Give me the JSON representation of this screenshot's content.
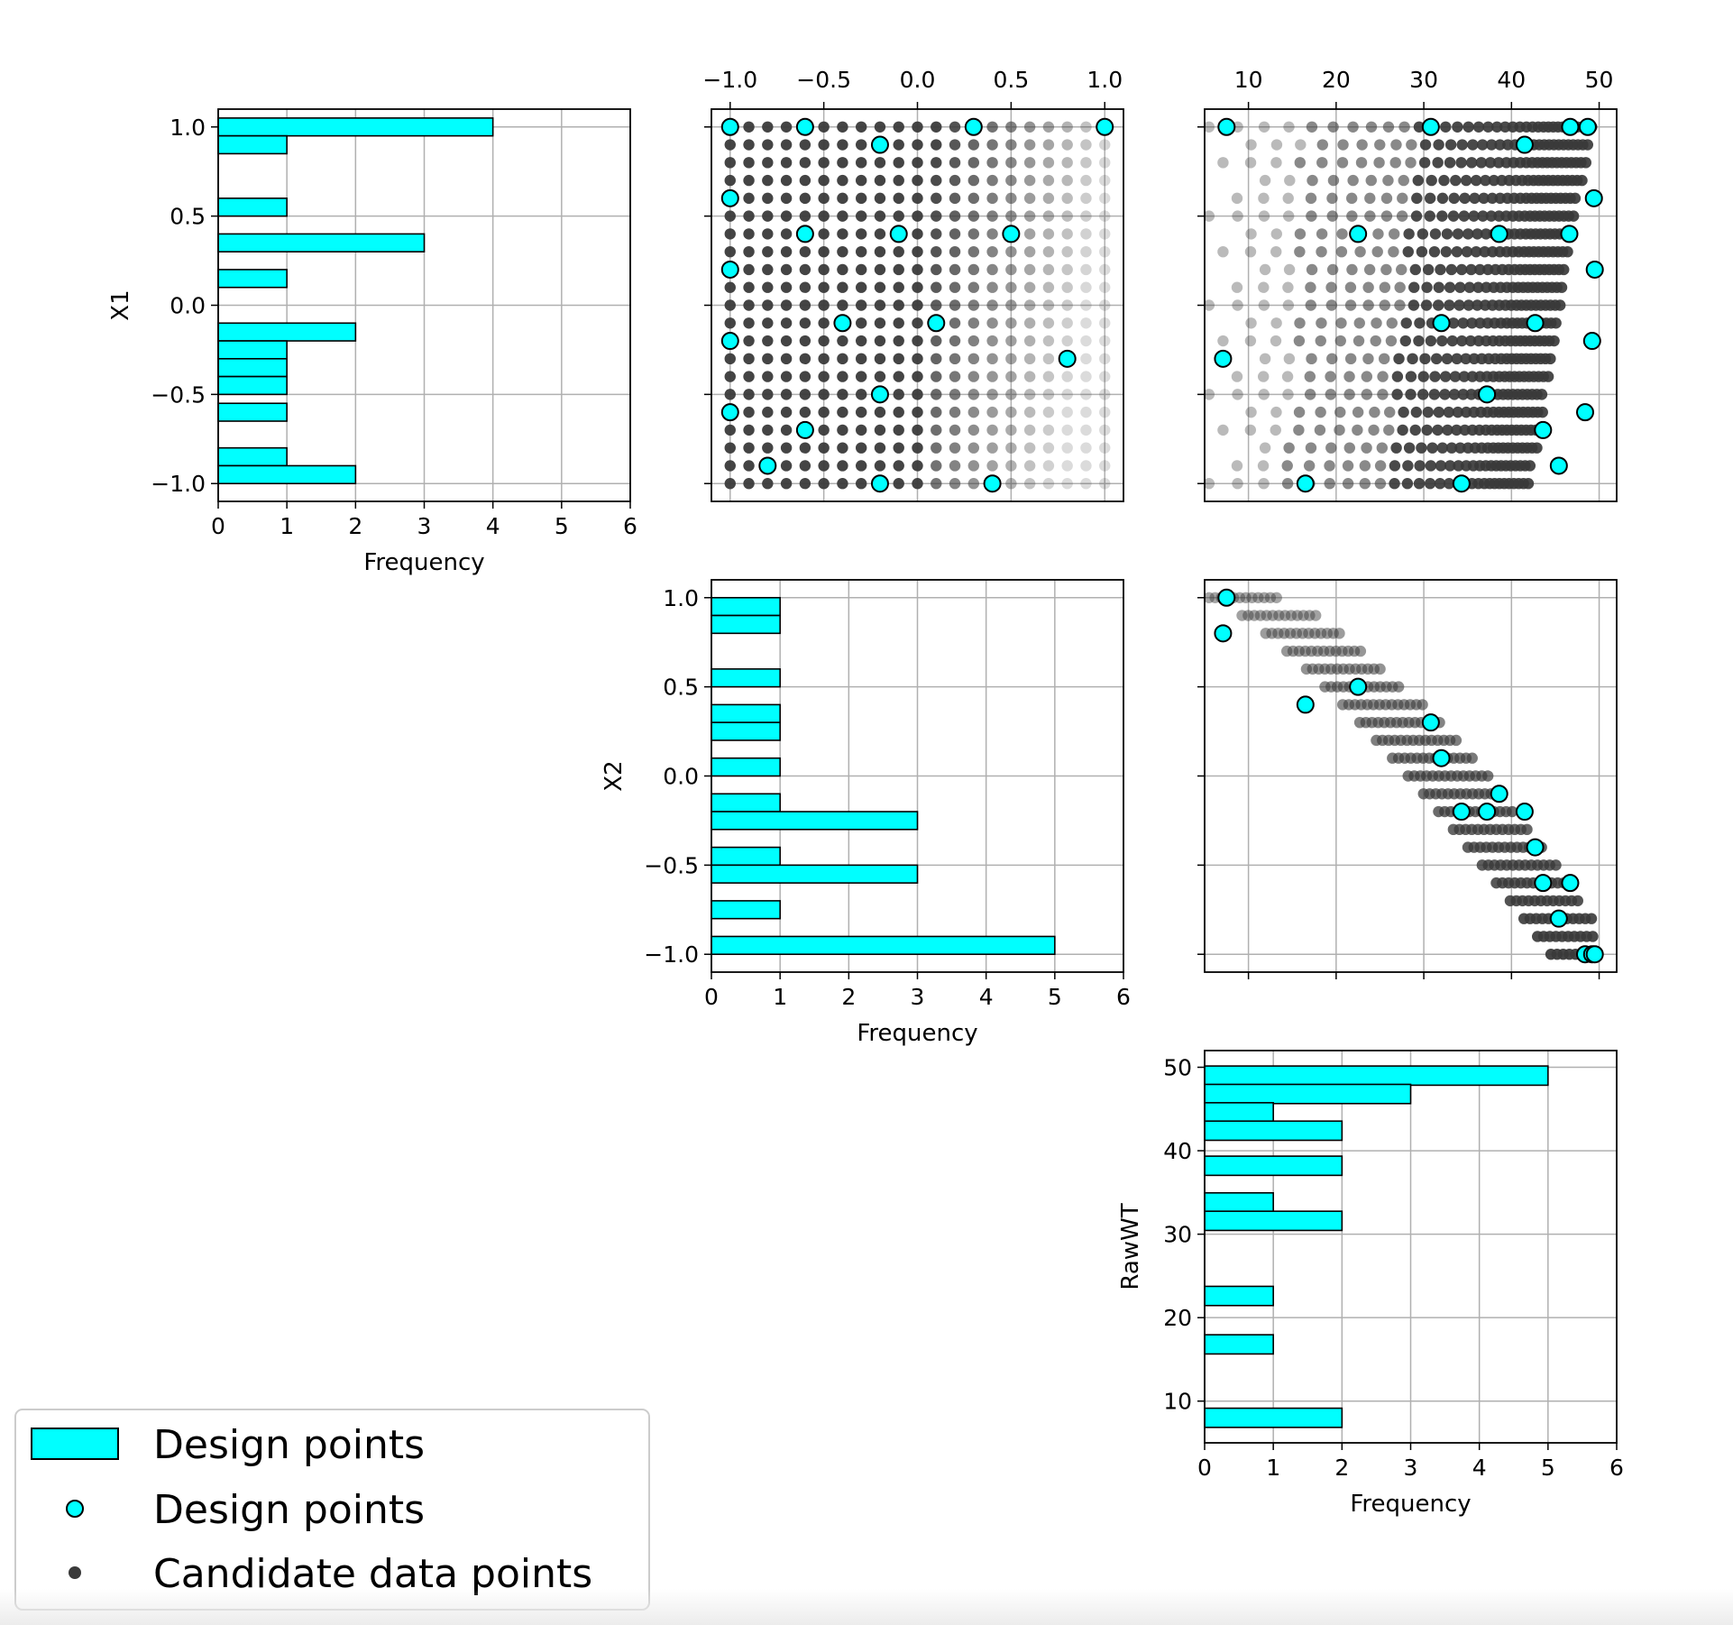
{
  "colors": {
    "design": "#00ffff",
    "edge": "#000000",
    "candidate": "#3a3a3a",
    "grid": "#b0b0b0"
  },
  "legend": {
    "position": "bottom-left",
    "items": [
      {
        "label": "Design points",
        "marker": "bar-patch"
      },
      {
        "label": "Design points",
        "marker": "circle"
      },
      {
        "label": "Candidate data points",
        "marker": "dot"
      }
    ]
  },
  "chart_data": [
    {
      "type": "bar",
      "orientation": "horizontal",
      "panel": "X1 histogram",
      "ylabel": "X1",
      "xlabel": "Frequency",
      "xlim": [
        0,
        6
      ],
      "ylim": [
        -1.1,
        1.1
      ],
      "xticks": [
        "0",
        "1",
        "2",
        "3",
        "4",
        "5",
        "6"
      ],
      "yticks": [
        "−1.0",
        "−0.5",
        "0.0",
        "0.5",
        "1.0"
      ],
      "bin_width": 0.1,
      "bins": [
        {
          "y": 1.0,
          "count": 4
        },
        {
          "y": 0.9,
          "count": 1
        },
        {
          "y": 0.55,
          "count": 1
        },
        {
          "y": 0.35,
          "count": 3
        },
        {
          "y": 0.15,
          "count": 1
        },
        {
          "y": -0.15,
          "count": 2
        },
        {
          "y": -0.25,
          "count": 1
        },
        {
          "y": -0.35,
          "count": 1
        },
        {
          "y": -0.45,
          "count": 1
        },
        {
          "y": -0.6,
          "count": 1
        },
        {
          "y": -0.85,
          "count": 1
        },
        {
          "y": -0.95,
          "count": 2
        }
      ]
    },
    {
      "type": "scatter",
      "panel": "X2 vs X1",
      "xlim": [
        -1.1,
        1.1
      ],
      "ylim": [
        -1.1,
        1.1
      ],
      "xticks": [
        "−1.0",
        "−0.5",
        "0.0",
        "0.5",
        "1.0"
      ],
      "xticks_position": "top",
      "candidates": "grid of X1, X2 from -1 to 1 in steps of 0.1, shading lighter toward X2 = 1",
      "design_points": [
        [
          -1.0,
          1.0
        ],
        [
          -0.6,
          1.0
        ],
        [
          0.3,
          1.0
        ],
        [
          1.0,
          1.0
        ],
        [
          -0.2,
          0.9
        ],
        [
          -1.0,
          0.6
        ],
        [
          -0.6,
          0.4
        ],
        [
          -0.1,
          0.4
        ],
        [
          0.5,
          0.4
        ],
        [
          -1.0,
          0.2
        ],
        [
          -0.4,
          -0.1
        ],
        [
          0.1,
          -0.1
        ],
        [
          -1.0,
          -0.2
        ],
        [
          0.8,
          -0.3
        ],
        [
          -0.2,
          -0.5
        ],
        [
          -1.0,
          -0.6
        ],
        [
          -0.6,
          -0.7
        ],
        [
          -0.8,
          -0.9
        ],
        [
          -0.2,
          -1.0
        ],
        [
          0.4,
          -1.0
        ]
      ]
    },
    {
      "type": "scatter",
      "panel": "RawWT vs X1",
      "xlim": [
        5,
        52
      ],
      "ylim": [
        -1.1,
        1.1
      ],
      "xticks": [
        "10",
        "20",
        "30",
        "40",
        "50"
      ],
      "xticks_position": "top",
      "design_points": [
        [
          7.5,
          1.0
        ],
        [
          30.8,
          1.0
        ],
        [
          46.7,
          1.0
        ],
        [
          48.7,
          1.0
        ],
        [
          41.5,
          0.9
        ],
        [
          49.4,
          0.6
        ],
        [
          22.5,
          0.4
        ],
        [
          38.6,
          0.4
        ],
        [
          46.6,
          0.4
        ],
        [
          49.5,
          0.2
        ],
        [
          32.0,
          -0.1
        ],
        [
          42.7,
          -0.1
        ],
        [
          49.2,
          -0.2
        ],
        [
          7.1,
          -0.3
        ],
        [
          37.2,
          -0.5
        ],
        [
          48.4,
          -0.6
        ],
        [
          43.6,
          -0.7
        ],
        [
          45.4,
          -0.9
        ],
        [
          16.5,
          -1.0
        ],
        [
          34.3,
          -1.0
        ]
      ]
    },
    {
      "type": "bar",
      "orientation": "horizontal",
      "panel": "X2 histogram",
      "ylabel": "X2",
      "xlabel": "Frequency",
      "xlim": [
        0,
        6
      ],
      "ylim": [
        -1.1,
        1.1
      ],
      "xticks": [
        "0",
        "1",
        "2",
        "3",
        "4",
        "5",
        "6"
      ],
      "yticks": [
        "−1.0",
        "−0.5",
        "0.0",
        "0.5",
        "1.0"
      ],
      "bin_width": 0.1,
      "bins": [
        {
          "y": 0.95,
          "count": 1
        },
        {
          "y": 0.85,
          "count": 1
        },
        {
          "y": 0.55,
          "count": 1
        },
        {
          "y": 0.35,
          "count": 1
        },
        {
          "y": 0.25,
          "count": 1
        },
        {
          "y": 0.05,
          "count": 1
        },
        {
          "y": -0.15,
          "count": 1
        },
        {
          "y": -0.25,
          "count": 3
        },
        {
          "y": -0.45,
          "count": 1
        },
        {
          "y": -0.55,
          "count": 3
        },
        {
          "y": -0.75,
          "count": 1
        },
        {
          "y": -0.95,
          "count": 5
        }
      ]
    },
    {
      "type": "scatter",
      "panel": "RawWT vs X2",
      "xlim": [
        5,
        52
      ],
      "ylim": [
        -1.1,
        1.1
      ],
      "design_points": [
        [
          7.5,
          1.0
        ],
        [
          7.1,
          0.8
        ],
        [
          22.5,
          0.5
        ],
        [
          16.5,
          0.4
        ],
        [
          30.8,
          0.3
        ],
        [
          32.0,
          0.1
        ],
        [
          38.6,
          -0.1
        ],
        [
          34.3,
          -0.2
        ],
        [
          37.2,
          -0.2
        ],
        [
          41.5,
          -0.2
        ],
        [
          42.7,
          -0.4
        ],
        [
          43.6,
          -0.6
        ],
        [
          46.7,
          -0.6
        ],
        [
          45.4,
          -0.8
        ],
        [
          48.4,
          -1.0
        ],
        [
          49.2,
          -1.0
        ],
        [
          49.5,
          -1.0
        ]
      ]
    },
    {
      "type": "bar",
      "orientation": "horizontal",
      "panel": "RawWT histogram",
      "ylabel": "RawWT",
      "xlabel": "Frequency",
      "xlim": [
        0,
        6
      ],
      "ylim": [
        5,
        52
      ],
      "xticks": [
        "0",
        "1",
        "2",
        "3",
        "4",
        "5",
        "6"
      ],
      "yticks": [
        "10",
        "20",
        "30",
        "40",
        "50"
      ],
      "bin_width": 2.3,
      "bins": [
        {
          "y": 49.0,
          "count": 5
        },
        {
          "y": 46.8,
          "count": 3
        },
        {
          "y": 44.6,
          "count": 1
        },
        {
          "y": 42.4,
          "count": 2
        },
        {
          "y": 38.2,
          "count": 2
        },
        {
          "y": 33.8,
          "count": 1
        },
        {
          "y": 31.6,
          "count": 2
        },
        {
          "y": 22.6,
          "count": 1
        },
        {
          "y": 16.8,
          "count": 1
        },
        {
          "y": 8.0,
          "count": 2
        }
      ]
    }
  ]
}
